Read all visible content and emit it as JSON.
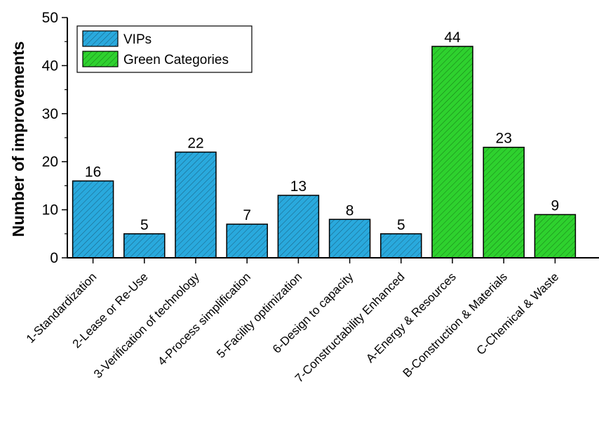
{
  "chart_data": {
    "type": "bar",
    "ylabel": "Number of improvements",
    "xlabel": "",
    "ylim": [
      0,
      50
    ],
    "yticks": [
      0,
      10,
      20,
      30,
      40,
      50
    ],
    "grid": false,
    "legend_position": "top-left",
    "categories": [
      "1-Standardization",
      "2-Lease or Re-Use",
      "3-Verification of technology",
      "4-Process simplification",
      "5-Facility optimization",
      "6-Design to capacity",
      "7-Constructability Enhanced",
      "A-Energy & Resources",
      "B-Construction & Materials",
      "C-Chemical & Waste"
    ],
    "values": [
      16,
      5,
      22,
      7,
      13,
      8,
      5,
      44,
      23,
      9
    ],
    "groups": [
      "VIPs",
      "VIPs",
      "VIPs",
      "VIPs",
      "VIPs",
      "VIPs",
      "VIPs",
      "Green Categories",
      "Green Categories",
      "Green Categories"
    ],
    "series": [
      {
        "name": "VIPs",
        "color": "#29a9dd",
        "pattern": "diagonal-hatch"
      },
      {
        "name": "Green Categories",
        "color": "#2ed12e",
        "pattern": "diagonal-hatch"
      }
    ]
  }
}
